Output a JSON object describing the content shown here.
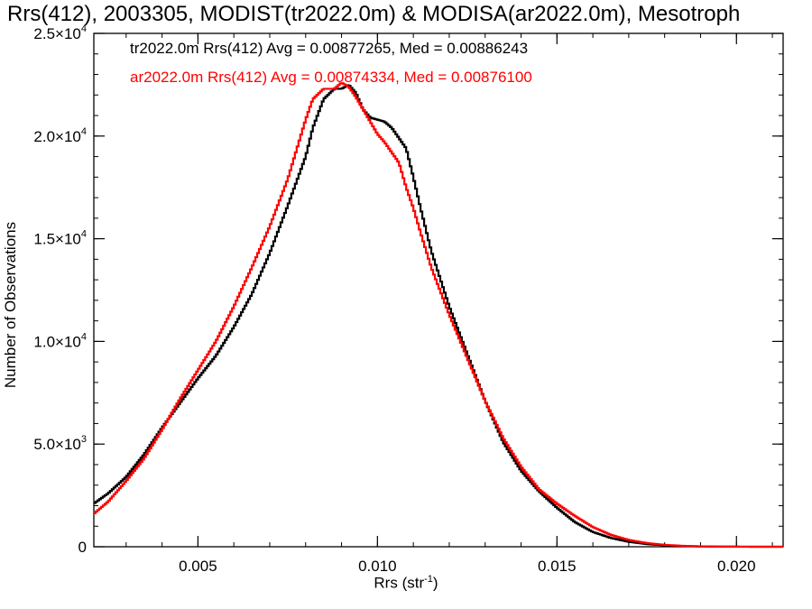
{
  "chart_data": {
    "type": "line",
    "title": "Rrs(412), 2003305, MODIST(tr2022.0m) & MODISA(ar2022.0m), Mesotroph",
    "xlabel": "Rrs (str",
    "xlabel_sup": "-1",
    "xlabel_close": ")",
    "ylabel": "Number of Observations",
    "xlim": [
      0.0021,
      0.0213
    ],
    "ylim": [
      0,
      25000
    ],
    "x_ticks": [
      0.005,
      0.01,
      0.015,
      0.02
    ],
    "x_tick_labels": [
      "0.005",
      "0.010",
      "0.015",
      "0.020"
    ],
    "y_ticks": [
      0,
      5000,
      10000,
      15000,
      20000,
      25000
    ],
    "y_tick_labels": [
      {
        "mant": "0",
        "exp": ""
      },
      {
        "mant": "5.0×10",
        "exp": "3"
      },
      {
        "mant": "1.0×10",
        "exp": "4"
      },
      {
        "mant": "1.5×10",
        "exp": "4"
      },
      {
        "mant": "2.0×10",
        "exp": "4"
      },
      {
        "mant": "2.5×10",
        "exp": "4"
      }
    ],
    "legend_placement": "top-left",
    "series": [
      {
        "name": "tr2022.0m Rrs(412) Avg = 0.00877265, Med = 0.00886243",
        "color": "#000000",
        "x": [
          0.0021,
          0.0025,
          0.003,
          0.0035,
          0.004,
          0.0045,
          0.005,
          0.0055,
          0.006,
          0.0065,
          0.007,
          0.0075,
          0.008,
          0.0082,
          0.0085,
          0.0088,
          0.009,
          0.0092,
          0.0094,
          0.0096,
          0.0098,
          0.01,
          0.0102,
          0.0104,
          0.0106,
          0.0108,
          0.011,
          0.0112,
          0.0115,
          0.012,
          0.0125,
          0.013,
          0.0135,
          0.014,
          0.0145,
          0.015,
          0.0155,
          0.016,
          0.0165,
          0.017,
          0.0175,
          0.018,
          0.0185,
          0.019,
          0.0195,
          0.02,
          0.0205,
          0.021,
          0.0213
        ],
        "y": [
          2100,
          2600,
          3400,
          4500,
          5800,
          7000,
          8200,
          9300,
          10700,
          12300,
          14300,
          16600,
          19000,
          20400,
          21800,
          22300,
          22300,
          22500,
          22100,
          21300,
          20900,
          20800,
          20700,
          20400,
          19900,
          19400,
          18000,
          16500,
          14400,
          11700,
          9400,
          7100,
          5100,
          3700,
          2700,
          1900,
          1200,
          720,
          430,
          240,
          130,
          70,
          35,
          15,
          8,
          3,
          1,
          0,
          0
        ]
      },
      {
        "name": "ar2022.0m Rrs(412) Avg = 0.00874334, Med = 0.00876100",
        "color": "#ff0000",
        "x": [
          0.0021,
          0.0025,
          0.003,
          0.0035,
          0.004,
          0.0045,
          0.005,
          0.0055,
          0.006,
          0.0065,
          0.007,
          0.0075,
          0.008,
          0.0082,
          0.0085,
          0.0088,
          0.009,
          0.0092,
          0.0094,
          0.0096,
          0.0098,
          0.01,
          0.0102,
          0.0104,
          0.0106,
          0.0108,
          0.011,
          0.0112,
          0.0115,
          0.012,
          0.0125,
          0.013,
          0.0135,
          0.014,
          0.0145,
          0.015,
          0.0155,
          0.016,
          0.0165,
          0.017,
          0.0175,
          0.018,
          0.0185,
          0.019,
          0.0195,
          0.02,
          0.0205,
          0.021,
          0.0213
        ],
        "y": [
          1600,
          2200,
          3200,
          4300,
          5700,
          7200,
          8600,
          10000,
          11700,
          13600,
          15600,
          17900,
          20800,
          21800,
          22300,
          22300,
          22600,
          22400,
          21900,
          21300,
          20700,
          20100,
          19700,
          19200,
          18700,
          17500,
          16500,
          15300,
          13600,
          11300,
          9200,
          7100,
          5300,
          3900,
          2800,
          2100,
          1500,
          960,
          580,
          330,
          180,
          90,
          45,
          20,
          9,
          4,
          1,
          0,
          0
        ]
      }
    ]
  }
}
